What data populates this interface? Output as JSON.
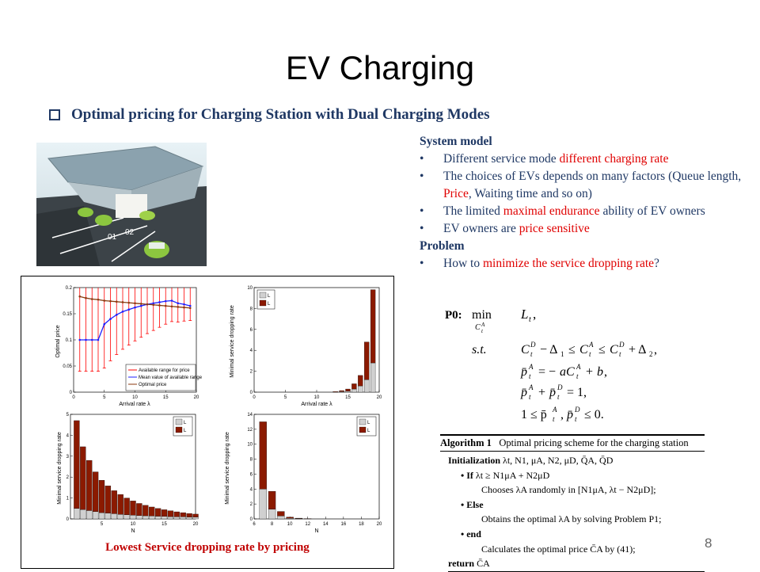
{
  "slide": {
    "title": "EV Charging",
    "subtitle": "Optimal pricing for Charging Station with Dual Charging Modes",
    "page_number": "8"
  },
  "system_model": {
    "heading": "System model",
    "bullets": [
      [
        "Different service mode ",
        "different charging rate",
        ""
      ],
      [
        "The choices of  EVs depends on many factors (Queue length, ",
        "Price",
        ", Waiting time and so on)"
      ],
      [
        "The limited ",
        "maximal endurance",
        " ability of EV owners"
      ],
      [
        "EV owners are ",
        "price sensitive",
        ""
      ]
    ]
  },
  "problem": {
    "heading": "Problem",
    "bullet": [
      "How to ",
      "minimize the service dropping rate",
      "?"
    ]
  },
  "formulation": {
    "label": "P0:",
    "min": "min",
    "min_sub": "C",
    "objective": "L",
    "st": "s.t.",
    "constraints": [
      "C",
      "p̄",
      "p̄",
      "1 ≤ p̄"
    ]
  },
  "algorithm": {
    "title": "Algorithm 1",
    "title_text": "Optimal pricing scheme for the charging station",
    "lines": [
      {
        "k": "Initialization",
        "t": " λt, N1, μA, N2, μD, Q̄A, Q̄D"
      },
      {
        "k": "• If",
        "t": " λt ≥ N1μA + N2μD"
      },
      {
        "k": "",
        "t": "Chooses λA randomly in [N1μA, λt − N2μD];"
      },
      {
        "k": "• Else",
        "t": ""
      },
      {
        "k": "",
        "t": "Obtains the optimal λA by solving Problem P1;"
      },
      {
        "k": "• end",
        "t": ""
      },
      {
        "k": "",
        "t": "Calculates the optimal price C̄A by (41);"
      },
      {
        "k": "return",
        "t": " C̄A"
      }
    ]
  },
  "figure": {
    "caption": "Lowest Service dropping rate by pricing",
    "plot1": {
      "ylabel": "Optimal price",
      "xlabel": "Arrival rate λ",
      "yticks": [
        "0.2",
        "0.15",
        "0.1",
        "0.05",
        "0"
      ],
      "xticks": [
        "0",
        "5",
        "10",
        "15",
        "20"
      ],
      "legend": [
        "Available range for price",
        "Mean value of available range",
        "Optimal price"
      ]
    },
    "plot2": {
      "ylabel": "Minimal service dropping rate",
      "xlabel": "Arrival rate λ",
      "yticks": [
        "10",
        "8",
        "6",
        "4",
        "2",
        "0"
      ],
      "xticks": [
        "0",
        "5",
        "10",
        "15",
        "20"
      ],
      "legend": [
        "L",
        "L"
      ]
    },
    "plot3": {
      "ylabel": "Minimal service dropping rate",
      "xlabel": "N",
      "yticks": [
        "5",
        "4",
        "3",
        "2",
        "1",
        "0"
      ],
      "xticks": [
        "5",
        "10",
        "15",
        "20"
      ],
      "legend": [
        "L",
        "L"
      ]
    },
    "plot4": {
      "ylabel": "Minimal service dropping rate",
      "xlabel": "N",
      "yticks": [
        "14",
        "12",
        "10",
        "8",
        "6",
        "4",
        "2",
        "0"
      ],
      "xticks": [
        "6",
        "8",
        "10",
        "12",
        "14",
        "16",
        "18",
        "20"
      ],
      "legend": [
        "L",
        "L"
      ]
    }
  },
  "chart_data": [
    {
      "type": "line",
      "ylabel": "Optimal price",
      "xlabel": "Arrival rate λ1",
      "xlim": [
        0,
        20
      ],
      "ylim": [
        0,
        0.2
      ],
      "series": [
        {
          "name": "Mean value of available range",
          "x": [
            1,
            2,
            3,
            4,
            5,
            6,
            7,
            8,
            9,
            10,
            11,
            12,
            13,
            14,
            15,
            16,
            17,
            18,
            19
          ],
          "y": [
            0.1,
            0.1,
            0.1,
            0.1,
            0.13,
            0.14,
            0.148,
            0.154,
            0.158,
            0.162,
            0.165,
            0.168,
            0.17,
            0.172,
            0.174,
            0.175,
            0.17,
            0.168,
            0.165
          ]
        },
        {
          "name": "Optimal price",
          "x": [
            1,
            2,
            3,
            4,
            5,
            6,
            7,
            8,
            9,
            10,
            11,
            12,
            13,
            14,
            15,
            16,
            17,
            18,
            19
          ],
          "y": [
            0.183,
            0.18,
            0.178,
            0.177,
            0.175,
            0.174,
            0.173,
            0.172,
            0.171,
            0.17,
            0.169,
            0.168,
            0.167,
            0.166,
            0.165,
            0.164,
            0.163,
            0.162,
            0.161
          ]
        }
      ]
    },
    {
      "type": "bar",
      "ylabel": "Minimal service dropping rate",
      "xlabel": "Arrival rate λ1",
      "xlim": [
        0,
        20
      ],
      "ylim": [
        0,
        10
      ],
      "x": [
        13,
        14,
        15,
        16,
        17,
        18,
        19
      ],
      "series": [
        {
          "name": "L^A",
          "values": [
            0,
            0.05,
            0.1,
            0.3,
            0.6,
            1.2,
            2.8
          ]
        },
        {
          "name": "L^D",
          "values": [
            0.05,
            0.1,
            0.2,
            0.5,
            1.0,
            3.6,
            7.0
          ]
        }
      ]
    },
    {
      "type": "bar",
      "ylabel": "Minimal service dropping rate",
      "xlabel": "N1",
      "xlim": [
        1,
        20
      ],
      "ylim": [
        0,
        5
      ],
      "x": [
        1,
        2,
        3,
        4,
        5,
        6,
        7,
        8,
        9,
        10,
        11,
        12,
        13,
        14,
        15,
        16,
        17,
        18,
        19,
        20
      ],
      "series": [
        {
          "name": "L^A",
          "values": [
            0.5,
            0.45,
            0.4,
            0.35,
            0.3,
            0.28,
            0.25,
            0.22,
            0.2,
            0.18,
            0.16,
            0.15,
            0.14,
            0.13,
            0.12,
            0.11,
            0.1,
            0.1,
            0.09,
            0.09
          ]
        },
        {
          "name": "L^D",
          "values": [
            4.2,
            3.0,
            2.4,
            1.9,
            1.55,
            1.3,
            1.1,
            0.95,
            0.8,
            0.68,
            0.58,
            0.5,
            0.43,
            0.37,
            0.32,
            0.28,
            0.24,
            0.2,
            0.17,
            0.14
          ]
        }
      ]
    },
    {
      "type": "bar",
      "ylabel": "Minimal service dropping rate",
      "xlabel": "N2",
      "xlim": [
        6,
        20
      ],
      "ylim": [
        0,
        14
      ],
      "x": [
        7,
        8,
        9,
        10,
        11,
        12
      ],
      "series": [
        {
          "name": "L^A",
          "values": [
            4,
            1.3,
            0.4,
            0.1,
            0.05,
            0.02
          ]
        },
        {
          "name": "L^D",
          "values": [
            9,
            2.4,
            0.6,
            0.15,
            0.05,
            0.02
          ]
        }
      ]
    }
  ]
}
